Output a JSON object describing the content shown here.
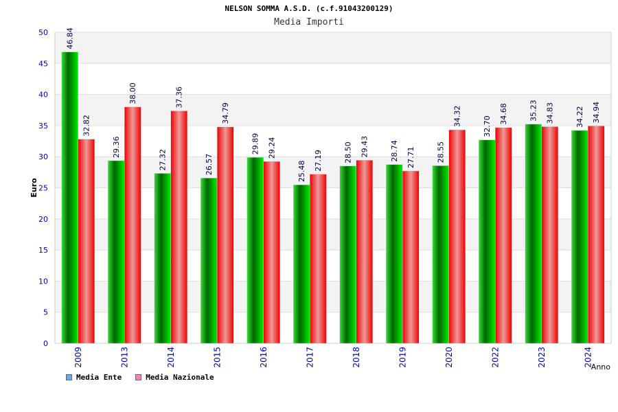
{
  "chart_data": {
    "type": "bar",
    "title": "NELSON SOMMA A.S.D. (c.f.91043200129)",
    "subtitle": "Media Importi",
    "xlabel": "Anno",
    "ylabel": "Euro",
    "ylim": [
      0,
      50
    ],
    "yticks": [
      "0",
      "5",
      "10",
      "15",
      "20",
      "25",
      "30",
      "35",
      "40",
      "45",
      "50"
    ],
    "categories": [
      "2009",
      "2013",
      "2014",
      "2015",
      "2016",
      "2017",
      "2018",
      "2019",
      "2020",
      "2022",
      "2023",
      "2024"
    ],
    "series": [
      {
        "name": "Media Ente",
        "values": [
          46.84,
          29.36,
          27.32,
          26.57,
          29.89,
          25.48,
          28.5,
          28.74,
          28.55,
          32.7,
          35.23,
          34.22
        ],
        "labels": [
          "46.84",
          "29.36",
          "27.32",
          "26.57",
          "29.89",
          "25.48",
          "28.50",
          "28.74",
          "28.55",
          "32.70",
          "35.23",
          "34.22"
        ]
      },
      {
        "name": "Media Nazionale",
        "values": [
          32.82,
          38.0,
          37.36,
          34.79,
          29.24,
          27.19,
          29.43,
          27.71,
          34.32,
          34.68,
          34.83,
          34.94
        ],
        "labels": [
          "32.82",
          "38.00",
          "37.36",
          "34.79",
          "29.24",
          "27.19",
          "29.43",
          "27.71",
          "34.32",
          "34.68",
          "34.83",
          "34.94"
        ]
      }
    ],
    "grid": true,
    "legend_position": "bottom-left",
    "colors": {
      "ente": "#00cc00",
      "nazionale": "#ee0000",
      "legend_ente": "#66aaee",
      "legend_nazionale": "#ee88bb",
      "tick_text": "#0000aa",
      "band": "#f3f3f3"
    }
  }
}
